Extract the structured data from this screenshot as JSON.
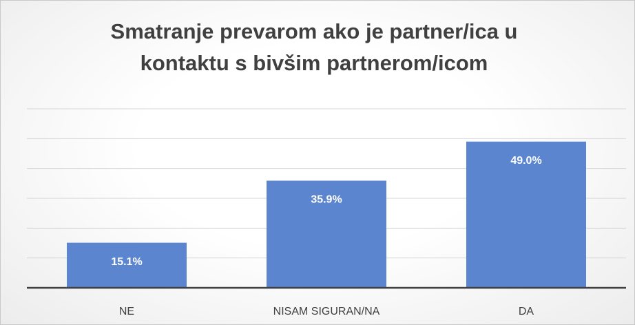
{
  "chart_data": {
    "type": "bar",
    "title": "Smatranje prevarom ako je partner/ica u kontaktu s bivšim partnerom/icom",
    "categories": [
      "NE",
      "NISAM SIGURAN/NA",
      "DA"
    ],
    "values": [
      15.1,
      35.9,
      49.0
    ],
    "value_labels": [
      "15.1%",
      "35.9%",
      "49.0%"
    ],
    "color": "#5b86cf",
    "ylim": [
      0,
      60
    ],
    "yticks": [
      0,
      10,
      20,
      30,
      40,
      50,
      60
    ],
    "grid": true
  }
}
